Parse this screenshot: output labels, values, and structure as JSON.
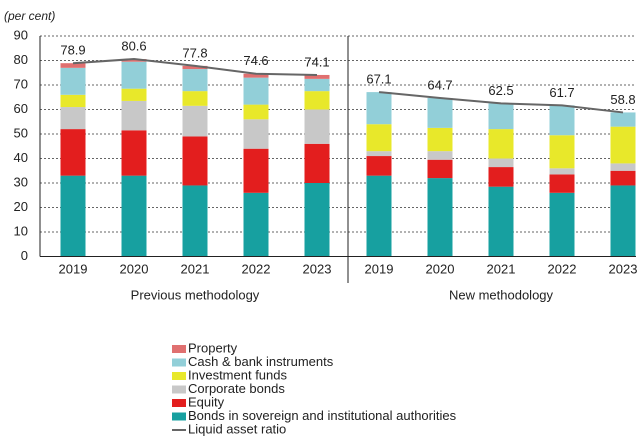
{
  "chart_data": {
    "type": "stacked_bar_line",
    "subtitle": "(per cent)",
    "categories": [
      "2019",
      "2020",
      "2021",
      "2022",
      "2023",
      "2019",
      "2020",
      "2021",
      "2022",
      "2023"
    ],
    "groups": [
      {
        "label": "Previous methodology",
        "start": 0,
        "end": 5
      },
      {
        "label": "New methodology",
        "start": 5,
        "end": 10
      }
    ],
    "series": [
      {
        "name": "Bonds in sovereign and institutional authorities",
        "color": "#17a0a0",
        "values": [
          33,
          33,
          29,
          26,
          30,
          33,
          32,
          28.5,
          26,
          29
        ]
      },
      {
        "name": "Equity",
        "color": "#e31e1e",
        "values": [
          19,
          18.5,
          20,
          18,
          16,
          8,
          7.5,
          8,
          7.5,
          6
        ]
      },
      {
        "name": "Corporate bonds",
        "color": "#c8c8c8",
        "values": [
          9,
          12,
          12.5,
          12,
          14,
          2,
          3.5,
          3.5,
          2.5,
          3
        ]
      },
      {
        "name": "Investment funds",
        "color": "#e8e82a",
        "values": [
          5,
          5,
          6,
          6,
          7.5,
          11,
          9.5,
          12,
          13.5,
          15
        ]
      },
      {
        "name": "Cash & bank instruments",
        "color": "#92cfd8",
        "values": [
          11,
          11,
          9,
          11,
          5,
          13.1,
          12.2,
          10.5,
          12.2,
          5.8
        ]
      },
      {
        "name": "Property",
        "color": "#e07070",
        "values": [
          1.9,
          1.1,
          1.3,
          1.6,
          1.6,
          0,
          0,
          0,
          0,
          0
        ]
      }
    ],
    "line": {
      "name": "Liquid asset ratio",
      "color": "#666666",
      "values": [
        78.9,
        80.6,
        77.8,
        74.6,
        74.1,
        67.1,
        64.7,
        62.5,
        61.7,
        58.8
      ]
    },
    "ylim": [
      0,
      90
    ],
    "yticks": [
      0,
      10,
      20,
      30,
      40,
      50,
      60,
      70,
      80,
      90
    ],
    "grid": true
  }
}
